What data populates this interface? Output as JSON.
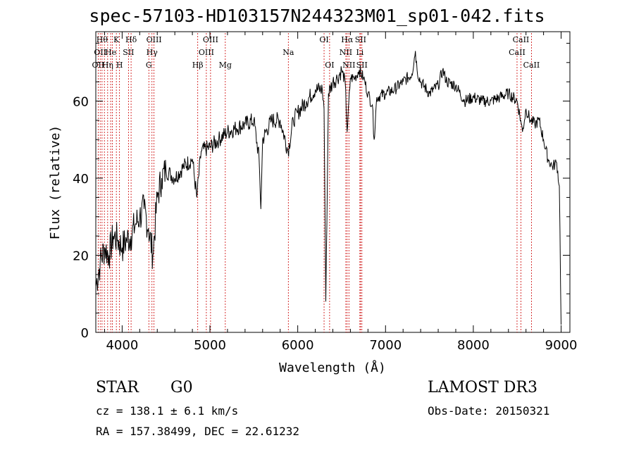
{
  "chart_data": {
    "type": "line",
    "title": "spec-57103-HD103157N244323M01_sp01-042.fits",
    "xlabel": "Wavelength (Å)",
    "ylabel": "Flux (relative)",
    "xlim": [
      3700,
      9100
    ],
    "ylim": [
      0,
      78
    ],
    "xticks": [
      4000,
      5000,
      6000,
      7000,
      8000,
      9000
    ],
    "yticks": [
      0,
      20,
      40,
      60
    ],
    "line_color": "#000000",
    "marker_color": "#cc0000",
    "series": [
      {
        "x": [
          3700,
          3750,
          3800,
          3850,
          3900,
          3950,
          4000,
          4050,
          4100,
          4150,
          4200,
          4250,
          4300,
          4350,
          4400,
          4450,
          4500,
          4550,
          4600,
          4700,
          4800,
          4850,
          4900,
          5000,
          5100,
          5200,
          5300,
          5400,
          5500,
          5560,
          5580,
          5600,
          5700,
          5800,
          5890,
          5950,
          6000,
          6100,
          6200,
          6280,
          6300,
          6320,
          6350,
          6400,
          6450,
          6500,
          6540,
          6563,
          6600,
          6650,
          6700,
          6750,
          6800,
          6850,
          6870,
          6900,
          7000,
          7100,
          7200,
          7300,
          7340,
          7360,
          7400,
          7500,
          7600,
          7650,
          7700,
          7800,
          7900,
          8000,
          8100,
          8200,
          8300,
          8400,
          8500,
          8540,
          8560,
          8600,
          8650,
          8700,
          8750,
          8800,
          8850,
          8900,
          8950,
          8980,
          9000
        ],
        "y": [
          12,
          18,
          22,
          20,
          25,
          24,
          22,
          24,
          25,
          28,
          30,
          32,
          27,
          20,
          35,
          40,
          42,
          41,
          40,
          43,
          45,
          35,
          47,
          48,
          50,
          52,
          53,
          54,
          55,
          45,
          32,
          50,
          55,
          55,
          47,
          55,
          57,
          60,
          63,
          63,
          58,
          8,
          62,
          65,
          66,
          68,
          65,
          52,
          66,
          66,
          68,
          66,
          62,
          59,
          50,
          61,
          62,
          63,
          65,
          67,
          73,
          68,
          65,
          62,
          64,
          68,
          65,
          64,
          60,
          61,
          60,
          60,
          61,
          62,
          60,
          55,
          52,
          58,
          55,
          54,
          55,
          50,
          45,
          43,
          44,
          38,
          2
        ]
      }
    ],
    "line_markers": [
      {
        "x": 3727,
        "row": 2,
        "label": "OII"
      },
      {
        "x": 3750,
        "row": 1,
        "label": "OII"
      },
      {
        "x": 3771,
        "row": 0,
        "label": "Hθ"
      },
      {
        "x": 3798,
        "row": 0,
        "label": ""
      },
      {
        "x": 3835,
        "row": 2,
        "label": "Hη"
      },
      {
        "x": 3869,
        "row": 1,
        "label": "He"
      },
      {
        "x": 3889,
        "row": 1,
        "label": ""
      },
      {
        "x": 3934,
        "row": 0,
        "label": "K"
      },
      {
        "x": 3970,
        "row": 2,
        "label": "H"
      },
      {
        "x": 4072,
        "row": 1,
        "label": "SII"
      },
      {
        "x": 4102,
        "row": 0,
        "label": "Hδ"
      },
      {
        "x": 4304,
        "row": 2,
        "label": "G"
      },
      {
        "x": 4340,
        "row": 1,
        "label": "Hγ"
      },
      {
        "x": 4363,
        "row": 0,
        "label": "OIII"
      },
      {
        "x": 4861,
        "row": 2,
        "label": "Hβ"
      },
      {
        "x": 4959,
        "row": 1,
        "label": "OIII"
      },
      {
        "x": 5007,
        "row": 0,
        "label": "OIII"
      },
      {
        "x": 5175,
        "row": 2,
        "label": "Mg"
      },
      {
        "x": 5893,
        "row": 1,
        "label": "Na"
      },
      {
        "x": 6300,
        "row": 0,
        "label": "OI"
      },
      {
        "x": 6363,
        "row": 2,
        "label": "OI"
      },
      {
        "x": 6548,
        "row": 1,
        "label": "NII"
      },
      {
        "x": 6563,
        "row": 0,
        "label": "Hα"
      },
      {
        "x": 6583,
        "row": 2,
        "label": "NII"
      },
      {
        "x": 6708,
        "row": 1,
        "label": "Li"
      },
      {
        "x": 6716,
        "row": 0,
        "label": "SII"
      },
      {
        "x": 6731,
        "row": 2,
        "label": "SII"
      },
      {
        "x": 8498,
        "row": 1,
        "label": "CaII"
      },
      {
        "x": 8542,
        "row": 0,
        "label": "CaII"
      },
      {
        "x": 8662,
        "row": 2,
        "label": "CaII"
      }
    ]
  },
  "info": {
    "object_class": "STAR",
    "subclass": "G0",
    "survey": "LAMOST DR3",
    "redshift_text": "cz = 138.1 ± 6.1 km/s",
    "obs_date_text": "Obs-Date: 20150321",
    "coords_text": "RA = 157.38499, DEC =  22.61232"
  }
}
